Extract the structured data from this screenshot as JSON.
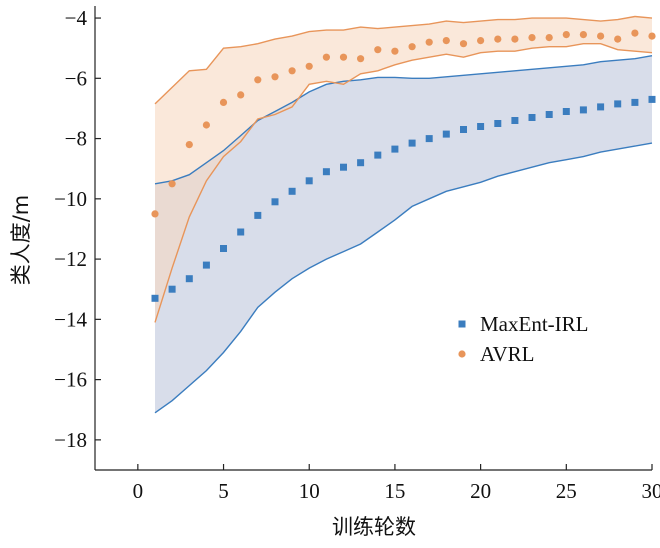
{
  "chart_data": {
    "type": "scatter",
    "title": "",
    "xlabel": "训练轮数",
    "ylabel": "类人度/m",
    "xlim": [
      -2.5,
      30
    ],
    "ylim": [
      -19,
      -3.6
    ],
    "xticks": [
      0,
      5,
      10,
      15,
      20,
      25,
      30
    ],
    "yticks": [
      -18,
      -16,
      -14,
      -12,
      -10,
      -8,
      -6,
      -4
    ],
    "legend_position": "right",
    "grid": false,
    "series": [
      {
        "name": "MaxEnt-IRL",
        "color": "#3b7dbf",
        "band_color": "#b8c1d8",
        "marker": "square",
        "x": [
          1,
          2,
          3,
          4,
          5,
          6,
          7,
          8,
          9,
          10,
          11,
          12,
          13,
          14,
          15,
          16,
          17,
          18,
          19,
          20,
          21,
          22,
          23,
          24,
          25,
          26,
          27,
          28,
          29,
          30
        ],
        "values": [
          -13.3,
          -13.0,
          -12.65,
          -12.2,
          -11.65,
          -11.1,
          -10.55,
          -10.1,
          -9.75,
          -9.4,
          -9.1,
          -8.95,
          -8.8,
          -8.55,
          -8.35,
          -8.15,
          -8.0,
          -7.85,
          -7.7,
          -7.6,
          -7.5,
          -7.4,
          -7.3,
          -7.2,
          -7.1,
          -7.05,
          -6.95,
          -6.85,
          -6.8,
          -6.7
        ],
        "upper": [
          -9.5,
          -9.4,
          -9.2,
          -8.8,
          -8.4,
          -7.9,
          -7.4,
          -7.1,
          -6.8,
          -6.45,
          -6.2,
          -6.1,
          -6.05,
          -5.97,
          -5.97,
          -6.0,
          -6.0,
          -5.95,
          -5.9,
          -5.85,
          -5.8,
          -5.75,
          -5.7,
          -5.65,
          -5.6,
          -5.55,
          -5.45,
          -5.4,
          -5.35,
          -5.25
        ],
        "lower": [
          -17.1,
          -16.7,
          -16.2,
          -15.7,
          -15.1,
          -14.4,
          -13.6,
          -13.1,
          -12.65,
          -12.3,
          -12.0,
          -11.75,
          -11.5,
          -11.1,
          -10.7,
          -10.25,
          -10.0,
          -9.75,
          -9.6,
          -9.45,
          -9.25,
          -9.1,
          -8.95,
          -8.8,
          -8.7,
          -8.6,
          -8.45,
          -8.35,
          -8.25,
          -8.15
        ]
      },
      {
        "name": "AVRL",
        "color": "#e8955a",
        "band_color": "#f7d9c2",
        "marker": "circle",
        "x": [
          1,
          2,
          3,
          4,
          5,
          6,
          7,
          8,
          9,
          10,
          11,
          12,
          13,
          14,
          15,
          16,
          17,
          18,
          19,
          20,
          21,
          22,
          23,
          24,
          25,
          26,
          27,
          28,
          29,
          30
        ],
        "values": [
          -10.5,
          -9.5,
          -8.2,
          -7.55,
          -6.8,
          -6.55,
          -6.05,
          -5.95,
          -5.75,
          -5.6,
          -5.3,
          -5.3,
          -5.35,
          -5.05,
          -5.1,
          -4.95,
          -4.8,
          -4.75,
          -4.85,
          -4.75,
          -4.7,
          -4.7,
          -4.65,
          -4.65,
          -4.55,
          -4.55,
          -4.6,
          -4.7,
          -4.5,
          -4.6
        ],
        "upper": [
          -6.85,
          -6.3,
          -5.75,
          -5.7,
          -5.0,
          -4.95,
          -4.85,
          -4.7,
          -4.6,
          -4.45,
          -4.4,
          -4.4,
          -4.3,
          -4.35,
          -4.3,
          -4.25,
          -4.2,
          -4.1,
          -4.15,
          -4.1,
          -4.05,
          -4.05,
          -4.0,
          -4.0,
          -4.0,
          -4.05,
          -4.1,
          -4.05,
          -3.95,
          -4.0
        ],
        "lower": [
          -14.1,
          -12.3,
          -10.6,
          -9.4,
          -8.6,
          -8.1,
          -7.35,
          -7.2,
          -6.95,
          -6.2,
          -6.1,
          -6.2,
          -5.85,
          -5.75,
          -5.55,
          -5.4,
          -5.3,
          -5.2,
          -5.3,
          -5.15,
          -5.1,
          -5.1,
          -5.0,
          -4.95,
          -4.95,
          -4.85,
          -4.85,
          -5.05,
          -5.1,
          -5.15
        ]
      }
    ]
  }
}
